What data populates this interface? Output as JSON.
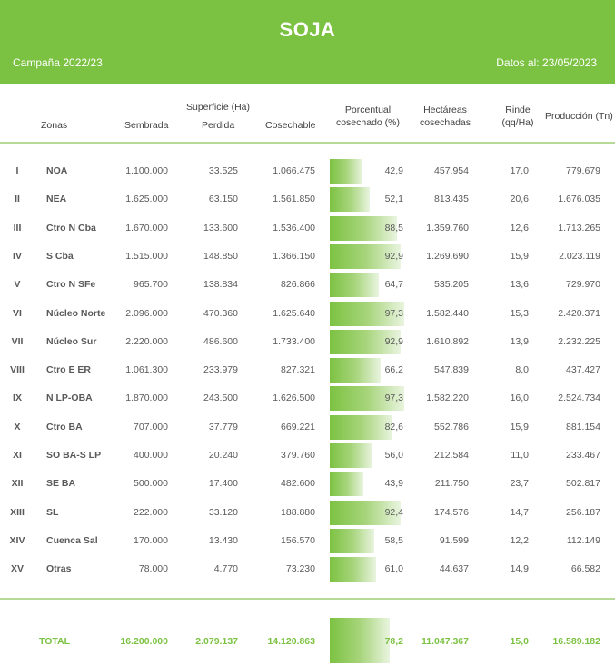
{
  "header": {
    "title": "SOJA",
    "campaign": "Campaña 2022/23",
    "date": "Datos al: 23/05/2023"
  },
  "columns": {
    "zonas": "Zonas",
    "superficie_group": "Superficie (Ha)",
    "sembrada": "Sembrada",
    "perdida": "Perdida",
    "cosechable": "Cosechable",
    "porcentual_1": "Porcentual",
    "porcentual_2": "cosechado (%)",
    "hectareas_1": "Hectáreas",
    "hectareas_2": "cosechadas",
    "rinde_1": "Rinde",
    "rinde_2": "(qq/Ha)",
    "produccion": "Producción (Tn)"
  },
  "rows": [
    {
      "roman": "I",
      "zona": "NOA",
      "sembrada": "1.100.000",
      "perdida": "33.525",
      "cosechable": "1.066.475",
      "pct": "42,9",
      "pct_value": 42.9,
      "hectareas": "457.954",
      "rinde": "17,0",
      "produccion": "779.679"
    },
    {
      "roman": "II",
      "zona": "NEA",
      "sembrada": "1.625.000",
      "perdida": "63.150",
      "cosechable": "1.561.850",
      "pct": "52,1",
      "pct_value": 52.1,
      "hectareas": "813.435",
      "rinde": "20,6",
      "produccion": "1.676.035"
    },
    {
      "roman": "III",
      "zona": "Ctro N Cba",
      "sembrada": "1.670.000",
      "perdida": "133.600",
      "cosechable": "1.536.400",
      "pct": "88,5",
      "pct_value": 88.5,
      "hectareas": "1.359.760",
      "rinde": "12,6",
      "produccion": "1.713.265"
    },
    {
      "roman": "IV",
      "zona": "S Cba",
      "sembrada": "1.515.000",
      "perdida": "148.850",
      "cosechable": "1.366.150",
      "pct": "92,9",
      "pct_value": 92.9,
      "hectareas": "1.269.690",
      "rinde": "15,9",
      "produccion": "2.023.119"
    },
    {
      "roman": "V",
      "zona": "Ctro N SFe",
      "sembrada": "965.700",
      "perdida": "138.834",
      "cosechable": "826.866",
      "pct": "64,7",
      "pct_value": 64.7,
      "hectareas": "535.205",
      "rinde": "13,6",
      "produccion": "729.970"
    },
    {
      "roman": "VI",
      "zona": "Núcleo Norte",
      "sembrada": "2.096.000",
      "perdida": "470.360",
      "cosechable": "1.625.640",
      "pct": "97,3",
      "pct_value": 97.3,
      "hectareas": "1.582.440",
      "rinde": "15,3",
      "produccion": "2.420.371"
    },
    {
      "roman": "VII",
      "zona": "Núcleo Sur",
      "sembrada": "2.220.000",
      "perdida": "486.600",
      "cosechable": "1.733.400",
      "pct": "92,9",
      "pct_value": 92.9,
      "hectareas": "1.610.892",
      "rinde": "13,9",
      "produccion": "2.232.225"
    },
    {
      "roman": "VIII",
      "zona": "Ctro E ER",
      "sembrada": "1.061.300",
      "perdida": "233.979",
      "cosechable": "827.321",
      "pct": "66,2",
      "pct_value": 66.2,
      "hectareas": "547.839",
      "rinde": "8,0",
      "produccion": "437.427"
    },
    {
      "roman": "IX",
      "zona": "N LP-OBA",
      "sembrada": "1.870.000",
      "perdida": "243.500",
      "cosechable": "1.626.500",
      "pct": "97,3",
      "pct_value": 97.3,
      "hectareas": "1.582.220",
      "rinde": "16,0",
      "produccion": "2.524.734"
    },
    {
      "roman": "X",
      "zona": "Ctro BA",
      "sembrada": "707.000",
      "perdida": "37.779",
      "cosechable": "669.221",
      "pct": "82,6",
      "pct_value": 82.6,
      "hectareas": "552.786",
      "rinde": "15,9",
      "produccion": "881.154"
    },
    {
      "roman": "XI",
      "zona": "SO BA-S LP",
      "sembrada": "400.000",
      "perdida": "20.240",
      "cosechable": "379.760",
      "pct": "56,0",
      "pct_value": 56.0,
      "hectareas": "212.584",
      "rinde": "11,0",
      "produccion": "233.467"
    },
    {
      "roman": "XII",
      "zona": "SE BA",
      "sembrada": "500.000",
      "perdida": "17.400",
      "cosechable": "482.600",
      "pct": "43,9",
      "pct_value": 43.9,
      "hectareas": "211.750",
      "rinde": "23,7",
      "produccion": "502.817"
    },
    {
      "roman": "XIII",
      "zona": "SL",
      "sembrada": "222.000",
      "perdida": "33.120",
      "cosechable": "188.880",
      "pct": "92,4",
      "pct_value": 92.4,
      "hectareas": "174.576",
      "rinde": "14,7",
      "produccion": "256.187"
    },
    {
      "roman": "XIV",
      "zona": "Cuenca Sal",
      "sembrada": "170.000",
      "perdida": "13.430",
      "cosechable": "156.570",
      "pct": "58,5",
      "pct_value": 58.5,
      "hectareas": "91.599",
      "rinde": "12,2",
      "produccion": "112.149"
    },
    {
      "roman": "XV",
      "zona": "Otras",
      "sembrada": "78.000",
      "perdida": "4.770",
      "cosechable": "73.230",
      "pct": "61,0",
      "pct_value": 61.0,
      "hectareas": "44.637",
      "rinde": "14,9",
      "produccion": "66.582"
    }
  ],
  "total": {
    "label": "TOTAL",
    "sembrada": "16.200.000",
    "perdida": "2.079.137",
    "cosechable": "14.120.863",
    "pct": "78,2",
    "pct_value": 78.2,
    "hectareas": "11.047.367",
    "rinde": "15,0",
    "produccion": "16.589.182"
  },
  "colors": {
    "accent": "#7cc242",
    "text": "#595959",
    "divider": "#b6da96"
  }
}
